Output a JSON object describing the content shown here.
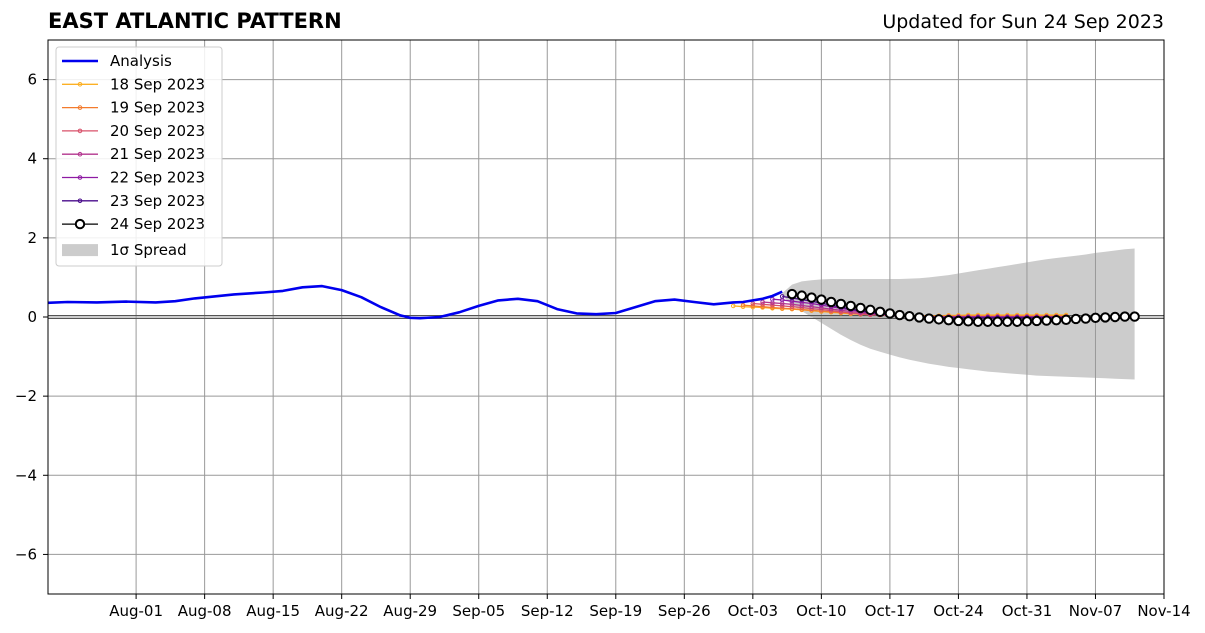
{
  "header": {
    "title": "EAST ATLANTIC PATTERN",
    "updated": "Updated for Sun 24 Sep 2023"
  },
  "chart_data": {
    "type": "line",
    "title": "EAST ATLANTIC PATTERN",
    "subtitle": "Updated for Sun 24 Sep 2023",
    "xlabel": "",
    "ylabel": "",
    "x_range": [
      "2023-07-23",
      "2023-11-14"
    ],
    "ylim": [
      -7,
      7
    ],
    "grid": true,
    "legend_position": "upper-left",
    "x_ticks": [
      "Aug-01",
      "Aug-08",
      "Aug-15",
      "Aug-22",
      "Aug-29",
      "Sep-05",
      "Sep-12",
      "Sep-19",
      "Sep-26",
      "Oct-03",
      "Oct-10",
      "Oct-17",
      "Oct-24",
      "Oct-31",
      "Nov-07",
      "Nov-14"
    ],
    "x_tick_dates": [
      "2023-08-01",
      "2023-08-08",
      "2023-08-15",
      "2023-08-22",
      "2023-08-29",
      "2023-09-05",
      "2023-09-12",
      "2023-09-19",
      "2023-09-26",
      "2023-10-03",
      "2023-10-10",
      "2023-10-17",
      "2023-10-24",
      "2023-10-31",
      "2023-11-07",
      "2023-11-14"
    ],
    "y_ticks": [
      -6,
      -4,
      -2,
      0,
      2,
      4,
      6
    ],
    "y_tick_labels": [
      "−6",
      "−4",
      "−2",
      "0",
      "2",
      "4",
      "6"
    ],
    "analysis": {
      "name": "Analysis",
      "color": "#0000ee",
      "points": [
        [
          "2023-07-23",
          0.36
        ],
        [
          "2023-07-25",
          0.38
        ],
        [
          "2023-07-28",
          0.37
        ],
        [
          "2023-07-31",
          0.39
        ],
        [
          "2023-08-03",
          0.37
        ],
        [
          "2023-08-05",
          0.4
        ],
        [
          "2023-08-07",
          0.47
        ],
        [
          "2023-08-09",
          0.52
        ],
        [
          "2023-08-11",
          0.57
        ],
        [
          "2023-08-14",
          0.62
        ],
        [
          "2023-08-16",
          0.66
        ],
        [
          "2023-08-18",
          0.75
        ],
        [
          "2023-08-20",
          0.78
        ],
        [
          "2023-08-22",
          0.68
        ],
        [
          "2023-08-24",
          0.5
        ],
        [
          "2023-08-26",
          0.25
        ],
        [
          "2023-08-28",
          0.04
        ],
        [
          "2023-08-29",
          -0.02
        ],
        [
          "2023-08-30",
          -0.03
        ],
        [
          "2023-09-01",
          0.0
        ],
        [
          "2023-09-03",
          0.12
        ],
        [
          "2023-09-05",
          0.28
        ],
        [
          "2023-09-07",
          0.42
        ],
        [
          "2023-09-09",
          0.46
        ],
        [
          "2023-09-11",
          0.4
        ],
        [
          "2023-09-13",
          0.2
        ],
        [
          "2023-09-15",
          0.09
        ],
        [
          "2023-09-17",
          0.07
        ],
        [
          "2023-09-19",
          0.1
        ],
        [
          "2023-09-21",
          0.25
        ],
        [
          "2023-09-23",
          0.4
        ],
        [
          "2023-09-25",
          0.44
        ],
        [
          "2023-09-27",
          0.38
        ],
        [
          "2023-09-29",
          0.32
        ],
        [
          "2023-10-01",
          0.37
        ],
        [
          "2023-10-02",
          0.38
        ],
        [
          "2023-10-03",
          0.42
        ],
        [
          "2023-10-04",
          0.46
        ],
        [
          "2023-10-05",
          0.53
        ],
        [
          "2023-10-06",
          0.64
        ]
      ]
    },
    "forecasts": [
      {
        "name": "18 Sep 2023",
        "color": "#fcb024",
        "start": "2023-10-01",
        "values": [
          0.28,
          0.26,
          0.25,
          0.24,
          0.22,
          0.21,
          0.2,
          0.18,
          0.16,
          0.14,
          0.12,
          0.1,
          0.08,
          0.07,
          0.06,
          0.05,
          0.04,
          0.04,
          0.03,
          0.03,
          0.03,
          0.03,
          0.04,
          0.04,
          0.05,
          0.05,
          0.05,
          0.05,
          0.05,
          0.05,
          0.05,
          0.05,
          0.05,
          0.05,
          0.05
        ]
      },
      {
        "name": "19 Sep 2023",
        "color": "#f37b2d",
        "start": "2023-10-02",
        "values": [
          0.3,
          0.28,
          0.26,
          0.24,
          0.22,
          0.21,
          0.19,
          0.17,
          0.15,
          0.13,
          0.11,
          0.09,
          0.07,
          0.06,
          0.05,
          0.04,
          0.03,
          0.03,
          0.02,
          0.02,
          0.02,
          0.02,
          0.02,
          0.02,
          0.02,
          0.02,
          0.02,
          0.02,
          0.02,
          0.02,
          0.02,
          0.02,
          0.02,
          0.02
        ]
      },
      {
        "name": "20 Sep 2023",
        "color": "#d8506a",
        "start": "2023-10-03",
        "values": [
          0.34,
          0.32,
          0.3,
          0.28,
          0.26,
          0.24,
          0.21,
          0.19,
          0.16,
          0.13,
          0.1,
          0.08,
          0.06,
          0.05,
          0.04,
          0.03,
          0.02,
          0.02,
          0.01,
          0.01,
          0.01,
          0.01,
          0.01,
          0.01,
          0.01,
          0.01,
          0.01,
          0.01,
          0.01,
          0.01,
          0.01,
          0.01,
          0.01
        ]
      },
      {
        "name": "21 Sep 2023",
        "color": "#b3358e",
        "start": "2023-10-04",
        "values": [
          0.38,
          0.36,
          0.34,
          0.32,
          0.29,
          0.26,
          0.23,
          0.2,
          0.17,
          0.14,
          0.11,
          0.08,
          0.06,
          0.04,
          0.03,
          0.02,
          0.01,
          0.0,
          0.0,
          0.0,
          0.0,
          0.0,
          0.0,
          0.0,
          0.0,
          0.0,
          0.0,
          0.0,
          0.0,
          0.0,
          0.0,
          0.0
        ]
      },
      {
        "name": "22 Sep 2023",
        "color": "#8e1aa3",
        "start": "2023-10-05",
        "values": [
          0.45,
          0.43,
          0.4,
          0.37,
          0.34,
          0.3,
          0.26,
          0.22,
          0.18,
          0.14,
          0.11,
          0.08,
          0.05,
          0.03,
          0.02,
          0.01,
          0.0,
          0.0,
          0.0,
          0.0,
          0.0,
          0.0,
          0.0,
          0.0,
          0.0,
          0.0,
          0.0,
          0.0,
          0.0,
          0.0,
          0.0
        ]
      },
      {
        "name": "23 Sep 2023",
        "color": "#4a0c8c",
        "start": "2023-10-06",
        "values": [
          0.52,
          0.48,
          0.44,
          0.4,
          0.35,
          0.3,
          0.25,
          0.2,
          0.16,
          0.12,
          0.08,
          0.05,
          0.02,
          0.0,
          -0.01,
          -0.02,
          -0.02,
          -0.02,
          -0.02,
          -0.02,
          -0.02,
          -0.02,
          -0.02,
          -0.02,
          -0.02,
          -0.02,
          -0.02,
          -0.02,
          -0.02,
          -0.02
        ]
      }
    ],
    "latest": {
      "name": "24 Sep 2023",
      "color": "#000000",
      "start": "2023-10-07",
      "values": [
        0.58,
        0.54,
        0.49,
        0.44,
        0.38,
        0.33,
        0.28,
        0.23,
        0.18,
        0.13,
        0.09,
        0.05,
        0.02,
        -0.01,
        -0.04,
        -0.06,
        -0.08,
        -0.1,
        -0.11,
        -0.12,
        -0.12,
        -0.12,
        -0.12,
        -0.12,
        -0.11,
        -0.1,
        -0.09,
        -0.08,
        -0.07,
        -0.05,
        -0.04,
        -0.02,
        -0.01,
        0.0,
        0.01,
        0.01
      ]
    },
    "spread": {
      "name": "1σ Spread",
      "color": "#cccccc",
      "start": "2023-10-06",
      "upper": [
        0.6,
        0.82,
        0.9,
        0.93,
        0.95,
        0.96,
        0.96,
        0.96,
        0.96,
        0.96,
        0.96,
        0.96,
        0.96,
        0.97,
        0.98,
        1.0,
        1.03,
        1.06,
        1.1,
        1.14,
        1.18,
        1.22,
        1.26,
        1.3,
        1.34,
        1.38,
        1.42,
        1.46,
        1.49,
        1.52,
        1.55,
        1.58,
        1.62,
        1.65,
        1.68,
        1.71,
        1.73
      ],
      "lower": [
        0.55,
        0.3,
        0.15,
        0.0,
        -0.15,
        -0.3,
        -0.45,
        -0.58,
        -0.7,
        -0.8,
        -0.88,
        -0.95,
        -1.02,
        -1.08,
        -1.13,
        -1.18,
        -1.22,
        -1.26,
        -1.29,
        -1.32,
        -1.35,
        -1.38,
        -1.4,
        -1.42,
        -1.44,
        -1.46,
        -1.48,
        -1.49,
        -1.5,
        -1.51,
        -1.52,
        -1.53,
        -1.54,
        -1.55,
        -1.56,
        -1.57,
        -1.58
      ]
    }
  }
}
